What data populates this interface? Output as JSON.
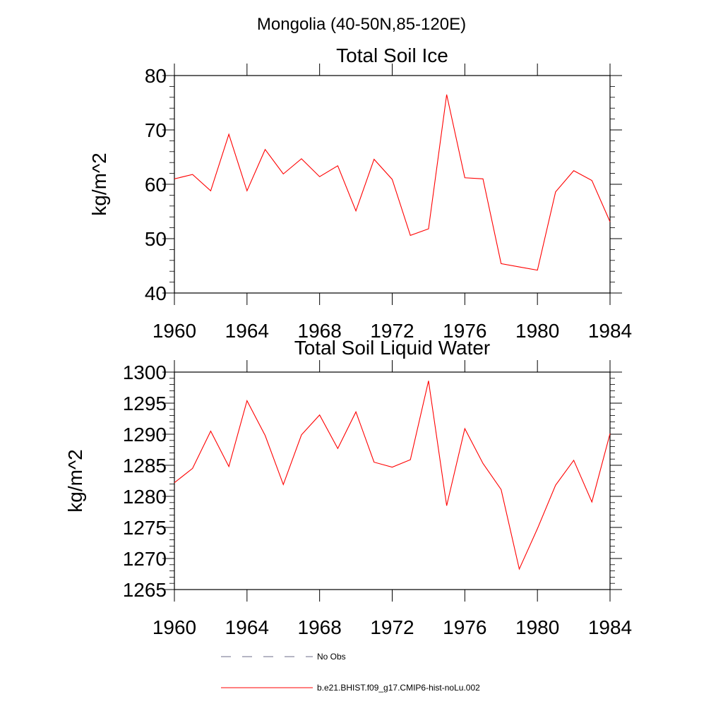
{
  "figure": {
    "main_title": "Mongolia (40-50N,85-120E)"
  },
  "chart_data": [
    {
      "type": "line",
      "title": "Total Soil Ice",
      "xlabel": "",
      "ylabel": "kg/m^2",
      "xlim": [
        1960,
        1984
      ],
      "ylim": [
        40,
        80
      ],
      "xticks": [
        1960,
        1964,
        1968,
        1972,
        1976,
        1980,
        1984
      ],
      "xtick_labels": [
        "1960",
        "1964",
        "1968",
        "1972",
        "1976",
        "1980",
        "1984"
      ],
      "yticks": [
        40,
        50,
        60,
        70,
        80
      ],
      "ytick_labels": [
        "40",
        "50",
        "60",
        "70",
        "80"
      ],
      "grid": false,
      "series": [
        {
          "name": "b.e21.BHIST.f09_g17.CMIP6-hist-noLu.002",
          "color": "#ff0000",
          "x": [
            1960,
            1961,
            1962,
            1963,
            1964,
            1965,
            1966,
            1967,
            1968,
            1969,
            1970,
            1971,
            1972,
            1973,
            1974,
            1975,
            1976,
            1977,
            1978,
            1979,
            1980,
            1981,
            1982,
            1983,
            1984
          ],
          "y": [
            61.0,
            61.8,
            58.8,
            69.2,
            58.8,
            66.4,
            61.9,
            64.7,
            61.4,
            63.4,
            55.1,
            64.6,
            60.9,
            50.6,
            51.8,
            76.5,
            61.2,
            61.0,
            45.4,
            44.8,
            44.2,
            58.6,
            62.5,
            60.7,
            53.1
          ]
        }
      ]
    },
    {
      "type": "line",
      "title": "Total Soil Liquid Water",
      "xlabel": "",
      "ylabel": "kg/m^2",
      "xlim": [
        1960,
        1984
      ],
      "ylim": [
        1265,
        1300
      ],
      "xticks": [
        1960,
        1964,
        1968,
        1972,
        1976,
        1980,
        1984
      ],
      "xtick_labels": [
        "1960",
        "1964",
        "1968",
        "1972",
        "1976",
        "1980",
        "1984"
      ],
      "yticks": [
        1265,
        1270,
        1275,
        1280,
        1285,
        1290,
        1295,
        1300
      ],
      "ytick_labels": [
        "1265",
        "1270",
        "1275",
        "1280",
        "1285",
        "1290",
        "1295",
        "1300"
      ],
      "grid": false,
      "series": [
        {
          "name": "b.e21.BHIST.f09_g17.CMIP6-hist-noLu.002",
          "color": "#ff0000",
          "x": [
            1960,
            1961,
            1962,
            1963,
            1964,
            1965,
            1966,
            1967,
            1968,
            1969,
            1970,
            1971,
            1972,
            1973,
            1974,
            1975,
            1976,
            1977,
            1978,
            1979,
            1980,
            1981,
            1982,
            1983,
            1984
          ],
          "y": [
            1282.2,
            1284.5,
            1290.5,
            1284.8,
            1295.4,
            1289.8,
            1281.9,
            1289.9,
            1293.1,
            1287.7,
            1293.6,
            1285.5,
            1284.7,
            1285.9,
            1298.6,
            1278.5,
            1290.9,
            1285.3,
            1281.1,
            1268.3,
            1274.8,
            1281.8,
            1285.8,
            1279.1,
            1290.1
          ]
        }
      ]
    }
  ],
  "legend": {
    "placement": "bottom",
    "items": [
      {
        "label": "No Obs",
        "style": "dashed",
        "color": "#6b6b8a"
      },
      {
        "label": "b.e21.BHIST.f09_g17.CMIP6-hist-noLu.002",
        "style": "solid",
        "color": "#ff0000"
      }
    ]
  }
}
